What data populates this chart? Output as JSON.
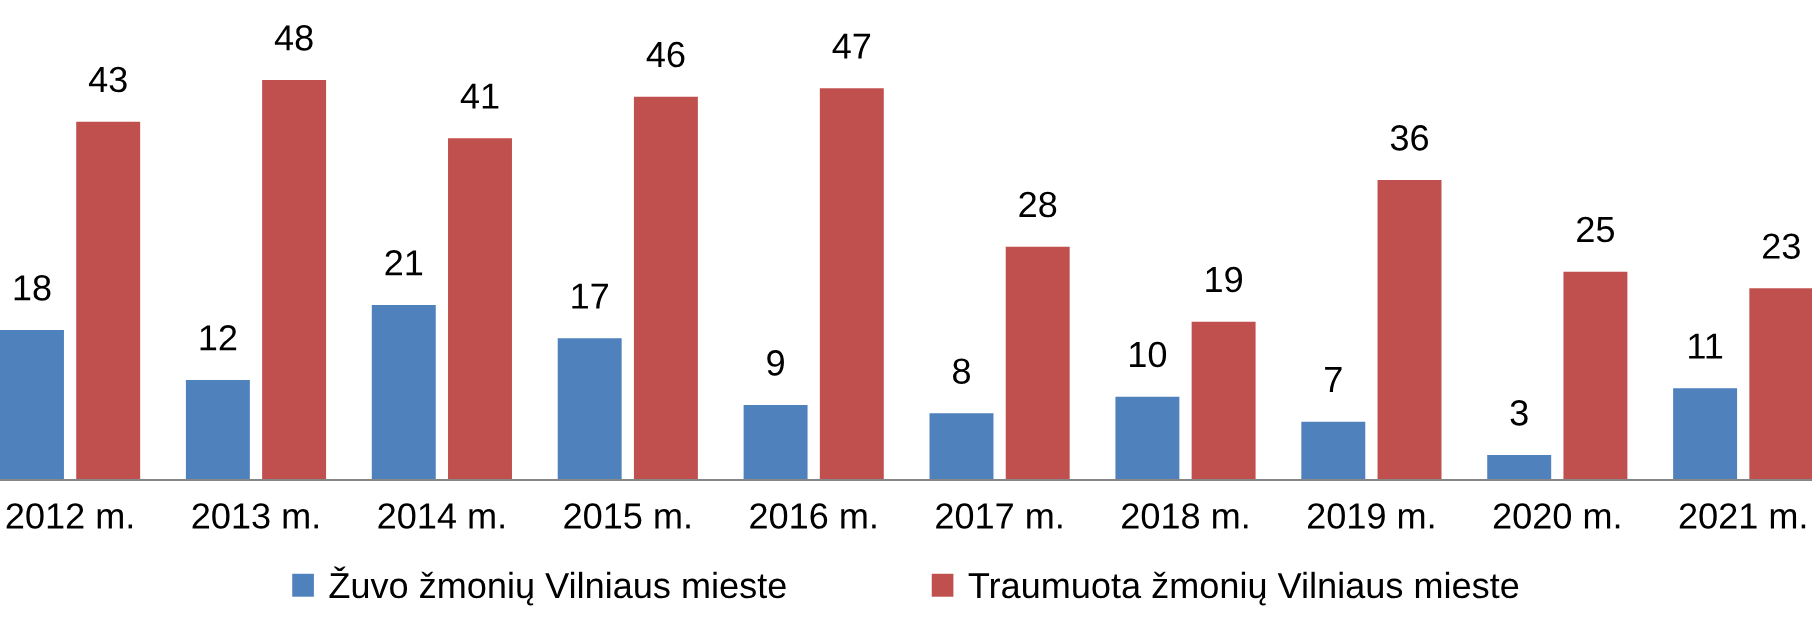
{
  "chart_data": {
    "type": "bar",
    "categories": [
      "2012 m.",
      "2013 m.",
      "2014 m.",
      "2015 m.",
      "2016 m.",
      "2017 m.",
      "2018 m.",
      "2019 m.",
      "2020 m.",
      "2021 m."
    ],
    "series": [
      {
        "name": "Žuvo žmonių Vilniaus mieste",
        "color": "#4f81bd",
        "values": [
          18,
          12,
          21,
          17,
          9,
          8,
          10,
          7,
          3,
          11
        ]
      },
      {
        "name": "Traumuota žmonių Vilniaus mieste",
        "color": "#c0504d",
        "values": [
          43,
          48,
          41,
          46,
          47,
          28,
          19,
          36,
          25,
          23
        ]
      }
    ],
    "data_labels": true,
    "legend": "bottom",
    "grid": false,
    "tick_labels": "x"
  }
}
